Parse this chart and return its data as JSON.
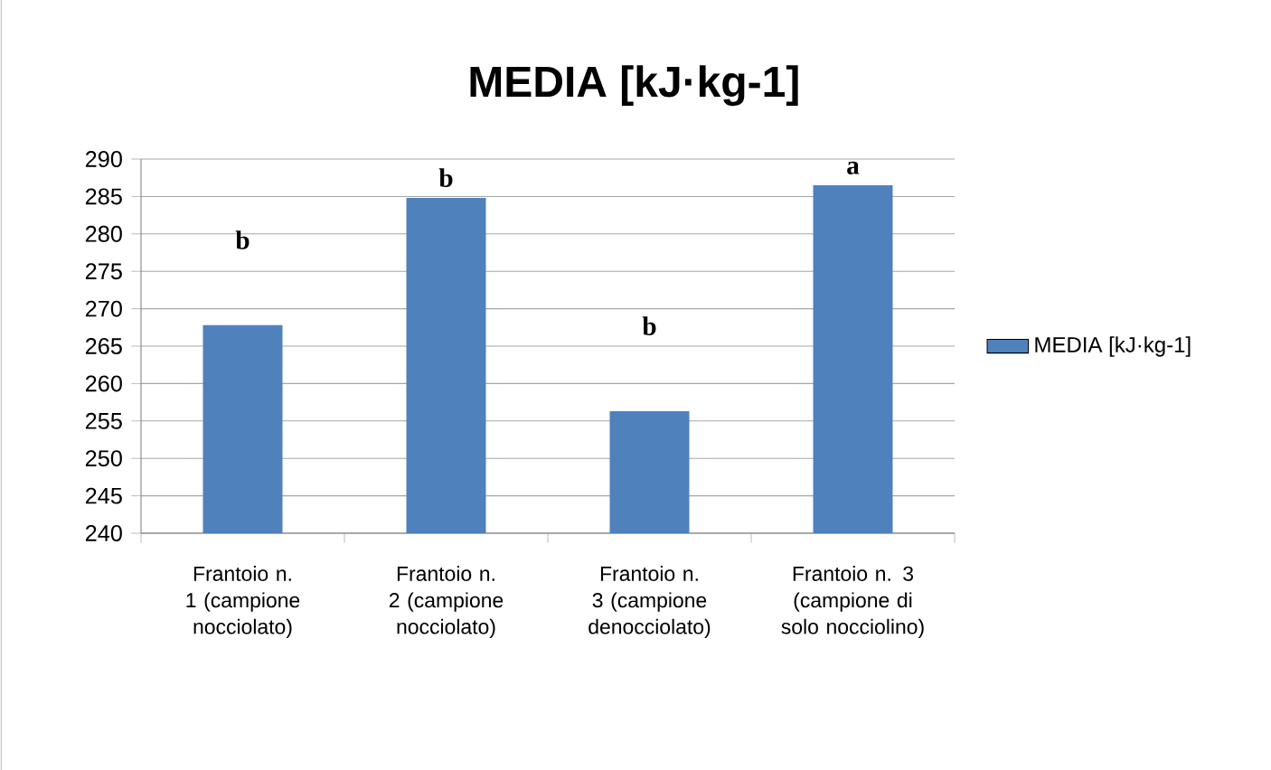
{
  "chart_data": {
    "type": "bar",
    "title": "MEDIA [kJ·kg-1]",
    "categories": [
      "Frantoio n. 1 (campione nocciolato)",
      "Frantoio n. 2 (campione nocciolato)",
      "Frantoio n. 3 (campione denocciolato)",
      "Frantoio n. 3 (campione di solo nocciolino)"
    ],
    "series": [
      {
        "name": "MEDIA [kJ·kg-1]",
        "color": "#4f81bd",
        "values": [
          267.8,
          284.8,
          256.3,
          286.5
        ]
      }
    ],
    "ylim": [
      240,
      290
    ],
    "yticks": [
      240,
      245,
      250,
      255,
      260,
      265,
      270,
      275,
      280,
      285,
      290
    ],
    "grid": "y",
    "legend": "right",
    "annotations": [
      "b",
      "b",
      "b",
      "a"
    ]
  }
}
